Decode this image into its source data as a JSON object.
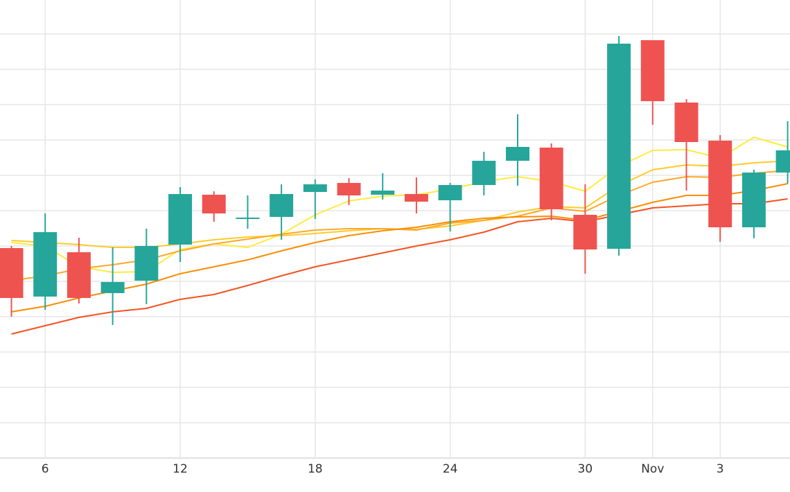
{
  "chart_data": {
    "type": "candlestick",
    "categories": [
      null,
      "6",
      null,
      null,
      null,
      "12",
      null,
      null,
      null,
      "18",
      null,
      null,
      null,
      "24",
      null,
      null,
      null,
      "30",
      null,
      "Nov",
      null,
      "3",
      null,
      null
    ],
    "open": [
      303,
      233,
      297,
      238,
      256,
      308,
      380,
      345,
      348,
      384,
      397,
      380,
      381,
      372,
      394,
      429,
      448,
      351,
      302,
      603,
      513,
      458,
      333,
      412
    ],
    "high": [
      306,
      353,
      318,
      304,
      331,
      391,
      385,
      379,
      395,
      402,
      404,
      411,
      405,
      397,
      442,
      496,
      454,
      395,
      609,
      603,
      518,
      466,
      416,
      486
    ],
    "low": [
      204,
      214,
      223,
      192,
      222,
      283,
      341,
      331,
      315,
      345,
      365,
      373,
      353,
      327,
      379,
      393,
      343,
      266,
      292,
      481,
      386,
      312,
      317,
      396
    ],
    "close": [
      231,
      326,
      231,
      254,
      306,
      381,
      353,
      347,
      381,
      395,
      379,
      386,
      370,
      394,
      429,
      449,
      359,
      301,
      598,
      515,
      456,
      333,
      412,
      444
    ],
    "up_color": "#26a69a",
    "down_color": "#ef5350",
    "series": [
      {
        "color": "#ffeb3b",
        "values": [
          311,
          306,
          276,
          268,
          269,
          301,
          309,
          304,
          323,
          351,
          371,
          378,
          380,
          388,
          399,
          406,
          399,
          385,
          421,
          444,
          445,
          433,
          463,
          449
        ]
      },
      {
        "color": "#ffca28",
        "values": [
          314,
          311,
          308,
          304,
          304,
          309,
          315,
          319,
          321,
          324,
          328,
          331,
          330,
          335,
          343,
          355,
          363,
          361,
          393,
          416,
          423,
          421,
          426,
          429
        ]
      },
      {
        "color": "#ffa726",
        "values": [
          256,
          263,
          273,
          279,
          286,
          299,
          309,
          316,
          323,
          329,
          331,
          331,
          329,
          339,
          343,
          349,
          361,
          356,
          379,
          398,
          406,
          405,
          411,
          415
        ]
      },
      {
        "color": "#fb8c00",
        "values": [
          211,
          219,
          231,
          241,
          251,
          266,
          276,
          286,
          299,
          311,
          321,
          328,
          333,
          341,
          346,
          348,
          349,
          343,
          356,
          369,
          379,
          379,
          386,
          396
        ]
      },
      {
        "color": "#f4511e",
        "values": [
          179,
          191,
          203,
          211,
          216,
          229,
          236,
          249,
          263,
          276,
          286,
          296,
          306,
          315,
          326,
          341,
          346,
          341,
          351,
          361,
          364,
          367,
          367,
          374
        ]
      }
    ],
    "ylim": [
      0,
      661
    ],
    "yticks": [
      0,
      51,
      102,
      153,
      204,
      255,
      306,
      357,
      408,
      459,
      510,
      561,
      612
    ],
    "grid": true
  }
}
